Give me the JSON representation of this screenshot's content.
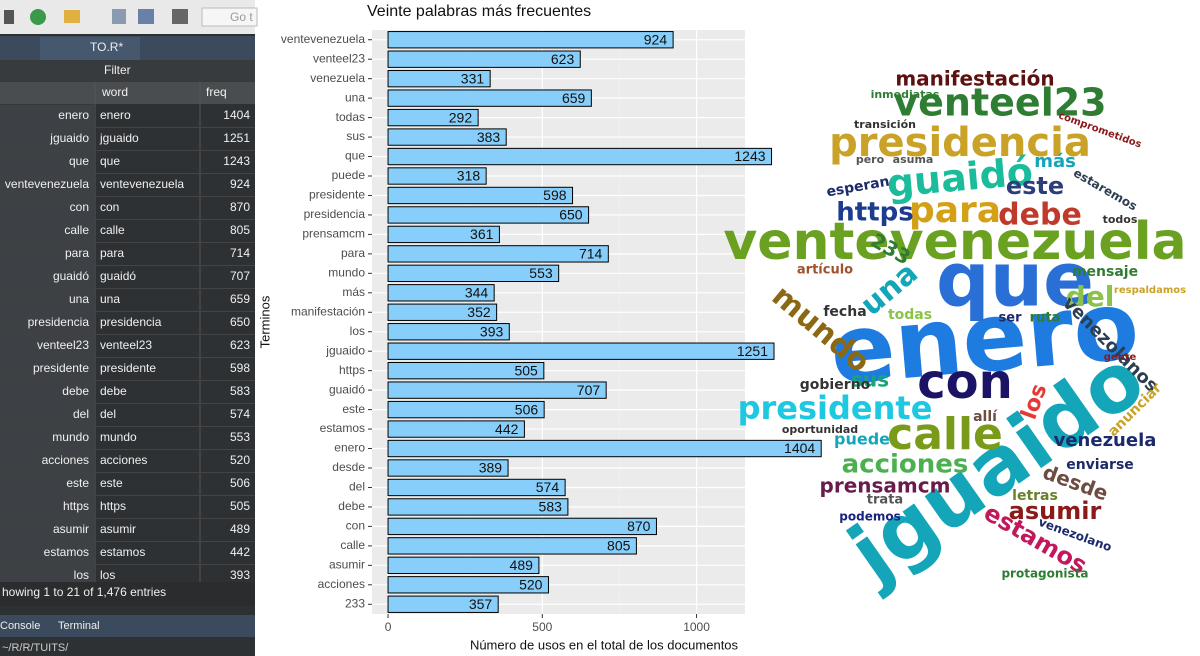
{
  "toolbar": {
    "goto": "Go t"
  },
  "editor_tab": "TO.R*",
  "filter": "Filter",
  "table": {
    "columns": [
      "word",
      "freq"
    ],
    "rows": [
      [
        "enero",
        "enero",
        1404
      ],
      [
        "jguaido",
        "jguaido",
        1251
      ],
      [
        "que",
        "que",
        1243
      ],
      [
        "ventevenezuela",
        "ventevenezuela",
        924
      ],
      [
        "con",
        "con",
        870
      ],
      [
        "calle",
        "calle",
        805
      ],
      [
        "para",
        "para",
        714
      ],
      [
        "guaidó",
        "guaidó",
        707
      ],
      [
        "una",
        "una",
        659
      ],
      [
        "presidencia",
        "presidencia",
        650
      ],
      [
        "venteel23",
        "venteel23",
        623
      ],
      [
        "presidente",
        "presidente",
        598
      ],
      [
        "debe",
        "debe",
        583
      ],
      [
        "del",
        "del",
        574
      ],
      [
        "mundo",
        "mundo",
        553
      ],
      [
        "acciones",
        "acciones",
        520
      ],
      [
        "este",
        "este",
        506
      ],
      [
        "https",
        "https",
        505
      ],
      [
        "asumir",
        "asumir",
        489
      ],
      [
        "estamos",
        "estamos",
        442
      ],
      [
        "los",
        "los",
        393
      ]
    ],
    "footer": "howing 1 to 21 of 1,476 entries"
  },
  "console_tabs": [
    "Console",
    "Terminal"
  ],
  "console_path": "~/R/R/TUITS/",
  "chart_data": {
    "type": "bar",
    "orientation": "horizontal",
    "title": "Veinte palabras más frecuentes",
    "x_label": "Número de usos en el total de los documentos",
    "y_label": "Terminos",
    "categories": [
      "ventevenezuela",
      "venteel23",
      "venezuela",
      "una",
      "todas",
      "sus",
      "que",
      "puede",
      "presidente",
      "presidencia",
      "prensamcm",
      "para",
      "mundo",
      "más",
      "manifestación",
      "los",
      "jguaido",
      "https",
      "guaidó",
      "este",
      "estamos",
      "enero",
      "desde",
      "del",
      "debe",
      "con",
      "calle",
      "asumir",
      "acciones",
      "233"
    ],
    "values": [
      924,
      623,
      331,
      659,
      292,
      383,
      1243,
      318,
      598,
      650,
      361,
      714,
      553,
      344,
      352,
      393,
      1251,
      505,
      707,
      506,
      442,
      1404,
      389,
      574,
      583,
      870,
      805,
      489,
      520,
      357
    ],
    "color": "#87cefa",
    "xlim": [
      -52,
      1157
    ],
    "xticks": [
      0,
      500,
      1000
    ],
    "grid": true
  },
  "wordcloud": {
    "words": [
      "enero",
      "jguaido",
      "que",
      "ventevenezuela",
      "con",
      "calle",
      "presidencia",
      "venteel23",
      "guaidó",
      "para",
      "presidente",
      "https",
      "debe",
      "este",
      "del",
      "una",
      "mundo",
      "acciones",
      "asumir",
      "prensamcm",
      "estamos",
      "desde",
      "los",
      "sus",
      "más",
      "manifestación",
      "venezolanos",
      "venezuela",
      "fecha",
      "todas",
      "mensaje",
      "gobierno",
      "artículo",
      "puede",
      "enviarse",
      "letras",
      "oportunidad",
      "trata",
      "podemos",
      "protagonista",
      "venezolano",
      "anunciar",
      "233",
      "ser",
      "ruta",
      "allí",
      "transición",
      "inmediatas",
      "asuma",
      "pero",
      "respaldamos",
      "esperan",
      "estaremos",
      "comprometidos",
      "gente",
      "todos"
    ]
  }
}
